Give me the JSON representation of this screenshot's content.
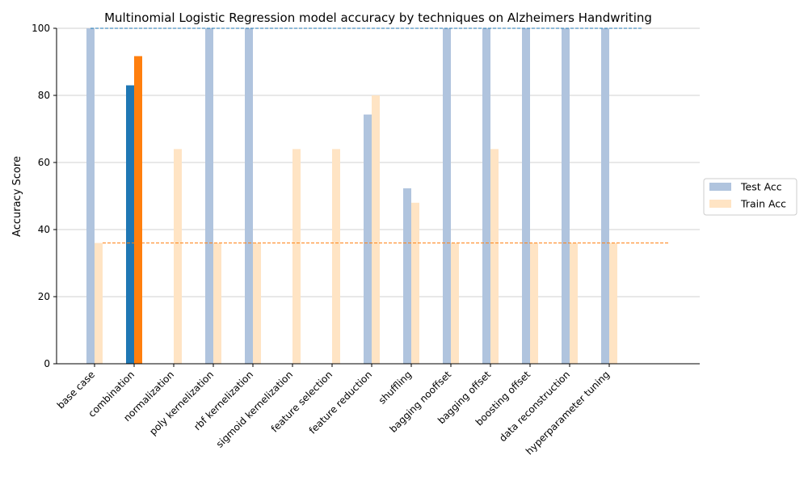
{
  "chart_data": {
    "type": "bar",
    "title": "Multinomial Logistic Regression model accuracy by techniques on Alzheimers Handwriting",
    "xlabel": "",
    "ylabel": "Accuracy Score",
    "ylim": [
      0,
      100
    ],
    "yticks": [
      "0",
      "20",
      "40",
      "60",
      "80",
      "100"
    ],
    "grid": "horizontal",
    "legend_position": "right",
    "categories": [
      "base case",
      "combination",
      "normalization",
      "poly kernelization",
      "rbf kernelization",
      "sigmoid kernelization",
      "feature selection",
      "feature reduction",
      "shuffling",
      "bagging nooffset",
      "bagging offset",
      "boosting offset",
      "data reconstruction",
      "hyperparameter tuning"
    ],
    "highlight_index": 1,
    "series": [
      {
        "name": "Test Acc",
        "color": "#b0c4de",
        "highlight_color": "#1f77b4",
        "values": [
          100,
          83,
          0,
          100,
          100,
          0,
          0,
          74.3,
          52.3,
          100,
          100,
          100,
          100,
          100
        ]
      },
      {
        "name": "Train Acc",
        "color": "#ffe4c4",
        "highlight_color": "#ff7f0e",
        "values": [
          36,
          91.7,
          64,
          36,
          36,
          64,
          64,
          80,
          48,
          36,
          64,
          36,
          36,
          36
        ]
      }
    ],
    "reference_lines": [
      {
        "value": 100,
        "color": "#1f77b4"
      },
      {
        "value": 36,
        "color": "#ff7f0e"
      }
    ]
  }
}
